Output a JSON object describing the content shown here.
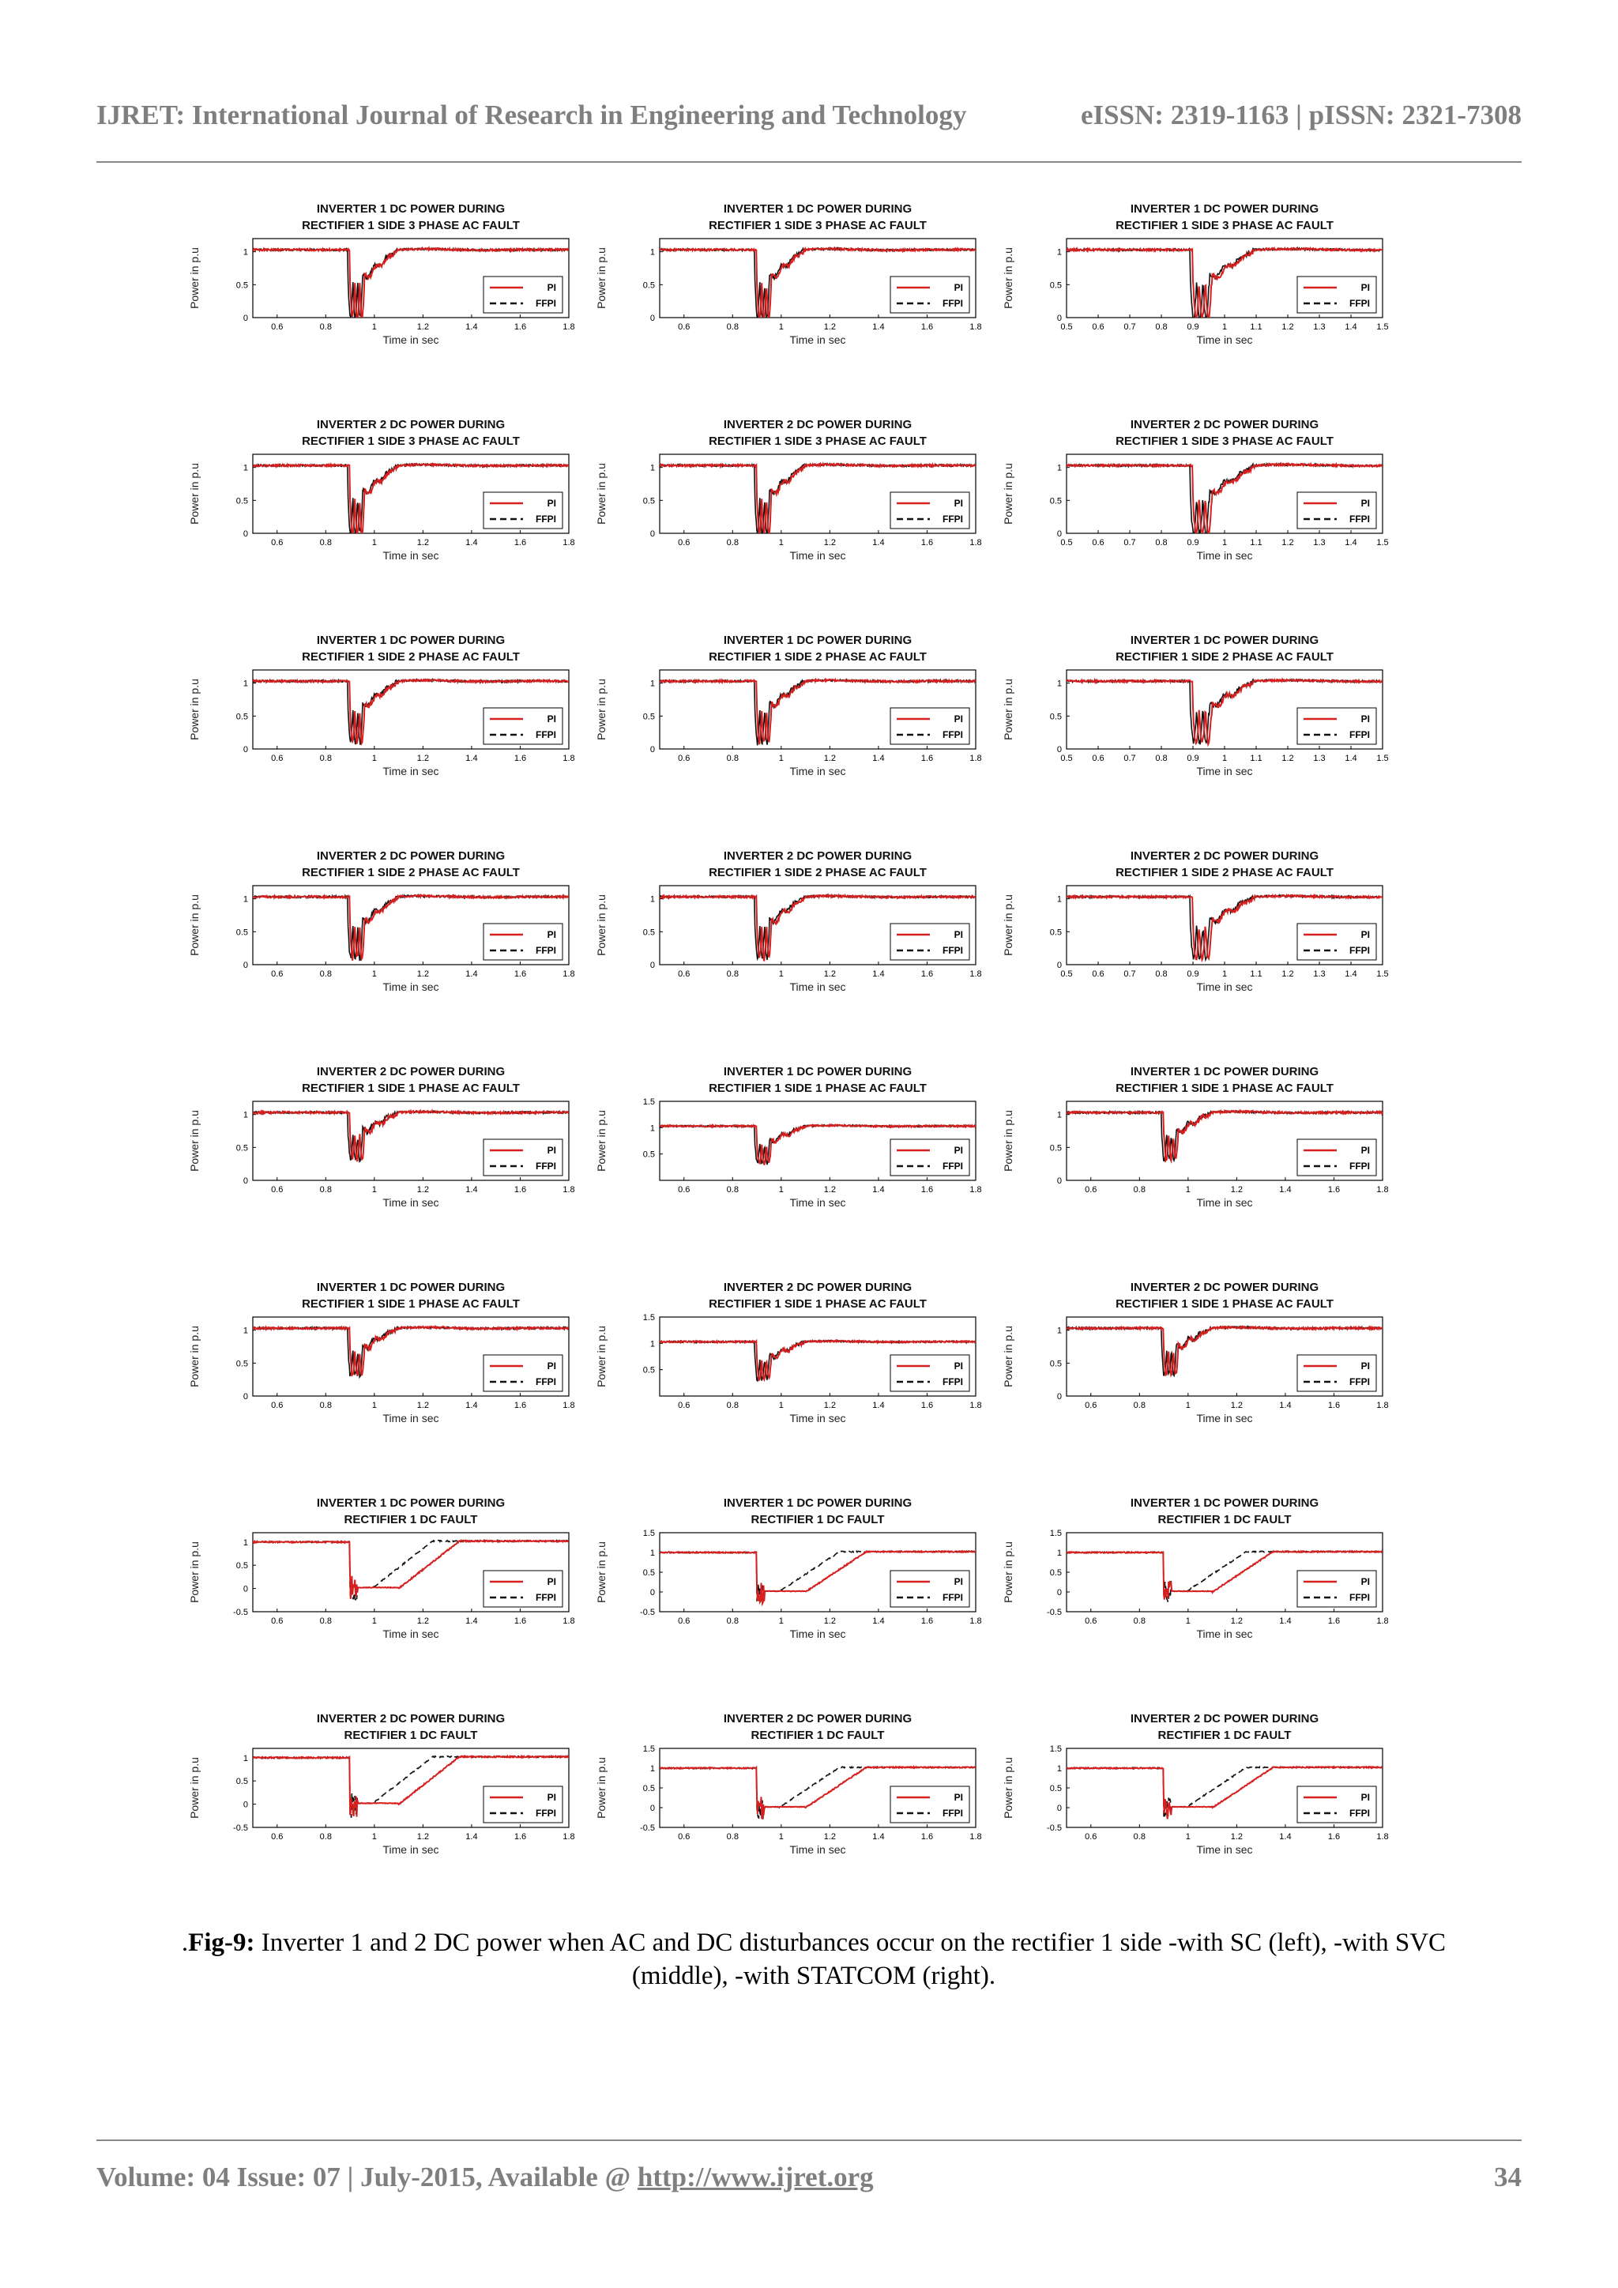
{
  "header": {
    "journal": "IJRET: International Journal of Research in Engineering and Technology",
    "issn": "eISSN: 2319-1163 | pISSN: 2321-7308"
  },
  "figure": {
    "legend": [
      "PI",
      "FFPI"
    ],
    "xlabel": "Time in sec",
    "ylabel": "Power in p.u",
    "colors": {
      "PI": "#d62020",
      "FFPI": "#111111"
    }
  },
  "chart_data": [
    {
      "type": "line",
      "title": "INVERTER 1 DC POWER DURING\nRECTIFIER 1 SIDE 3 PHASE AC FAULT",
      "fault": "ac3",
      "xlim": [
        0.5,
        1.8
      ],
      "xticks": [
        "0.6",
        "0.8",
        "1",
        "1.2",
        "1.4",
        "1.6",
        "1.8"
      ],
      "ylim": [
        0,
        1.2
      ],
      "yticks": [
        "0",
        "0.5",
        "1"
      ],
      "series": [
        {
          "name": "PI"
        },
        {
          "name": "FFPI"
        }
      ]
    },
    {
      "type": "line",
      "title": "INVERTER 1 DC POWER DURING\nRECTIFIER 1 SIDE 3 PHASE AC FAULT",
      "fault": "ac3",
      "xlim": [
        0.5,
        1.8
      ],
      "xticks": [
        "0.6",
        "0.8",
        "1",
        "1.2",
        "1.4",
        "1.6",
        "1.8"
      ],
      "ylim": [
        0,
        1.2
      ],
      "yticks": [
        "0",
        "0.5",
        "1"
      ],
      "series": [
        {
          "name": "PI"
        },
        {
          "name": "FFPI"
        }
      ]
    },
    {
      "type": "line",
      "title": "INVERTER 1 DC POWER DURING\nRECTIFIER 1 SIDE 3 PHASE AC FAULT",
      "fault": "ac3",
      "xlim": [
        0.5,
        1.5
      ],
      "xticks": [
        "0.5",
        "0.6",
        "0.7",
        "0.8",
        "0.9",
        "1",
        "1.1",
        "1.2",
        "1.3",
        "1.4",
        "1.5"
      ],
      "ylim": [
        0,
        1.2
      ],
      "yticks": [
        "0",
        "0.5",
        "1"
      ],
      "series": [
        {
          "name": "PI"
        },
        {
          "name": "FFPI"
        }
      ]
    },
    {
      "type": "line",
      "title": "INVERTER 2 DC POWER DURING\nRECTIFIER 1 SIDE 3 PHASE AC FAULT",
      "fault": "ac3",
      "xlim": [
        0.5,
        1.8
      ],
      "xticks": [
        "0.6",
        "0.8",
        "1",
        "1.2",
        "1.4",
        "1.6",
        "1.8"
      ],
      "ylim": [
        0,
        1.2
      ],
      "yticks": [
        "0",
        "0.5",
        "1"
      ],
      "series": [
        {
          "name": "PI"
        },
        {
          "name": "FFPI"
        }
      ]
    },
    {
      "type": "line",
      "title": "INVERTER 2 DC POWER DURING\nRECTIFIER 1 SIDE 3 PHASE AC FAULT",
      "fault": "ac3",
      "xlim": [
        0.5,
        1.8
      ],
      "xticks": [
        "0.6",
        "0.8",
        "1",
        "1.2",
        "1.4",
        "1.6",
        "1.8"
      ],
      "ylim": [
        0,
        1.2
      ],
      "yticks": [
        "0",
        "0.5",
        "1"
      ],
      "series": [
        {
          "name": "PI"
        },
        {
          "name": "FFPI"
        }
      ]
    },
    {
      "type": "line",
      "title": "INVERTER 2 DC POWER DURING\nRECTIFIER 1 SIDE 3 PHASE AC FAULT",
      "fault": "ac3",
      "xlim": [
        0.5,
        1.5
      ],
      "xticks": [
        "0.5",
        "0.6",
        "0.7",
        "0.8",
        "0.9",
        "1",
        "1.1",
        "1.2",
        "1.3",
        "1.4",
        "1.5"
      ],
      "ylim": [
        0,
        1.2
      ],
      "yticks": [
        "0",
        "0.5",
        "1"
      ],
      "series": [
        {
          "name": "PI"
        },
        {
          "name": "FFPI"
        }
      ]
    },
    {
      "type": "line",
      "title": "INVERTER 1 DC POWER DURING\nRECTIFIER 1 SIDE 2 PHASE AC FAULT",
      "fault": "ac2",
      "xlim": [
        0.5,
        1.8
      ],
      "xticks": [
        "0.6",
        "0.8",
        "1",
        "1.2",
        "1.4",
        "1.6",
        "1.8"
      ],
      "ylim": [
        0,
        1.2
      ],
      "yticks": [
        "0",
        "0.5",
        "1"
      ],
      "series": [
        {
          "name": "PI"
        },
        {
          "name": "FFPI"
        }
      ]
    },
    {
      "type": "line",
      "title": "INVERTER 1 DC POWER DURING\nRECTIFIER 1 SIDE 2 PHASE AC FAULT",
      "fault": "ac2",
      "xlim": [
        0.5,
        1.8
      ],
      "xticks": [
        "0.6",
        "0.8",
        "1",
        "1.2",
        "1.4",
        "1.6",
        "1.8"
      ],
      "ylim": [
        0,
        1.2
      ],
      "yticks": [
        "0",
        "0.5",
        "1"
      ],
      "series": [
        {
          "name": "PI"
        },
        {
          "name": "FFPI"
        }
      ]
    },
    {
      "type": "line",
      "title": "INVERTER 1 DC POWER DURING\nRECTIFIER 1 SIDE 2 PHASE AC FAULT",
      "fault": "ac2",
      "xlim": [
        0.5,
        1.5
      ],
      "xticks": [
        "0.5",
        "0.6",
        "0.7",
        "0.8",
        "0.9",
        "1",
        "1.1",
        "1.2",
        "1.3",
        "1.4",
        "1.5"
      ],
      "ylim": [
        0,
        1.2
      ],
      "yticks": [
        "0",
        "0.5",
        "1"
      ],
      "series": [
        {
          "name": "PI"
        },
        {
          "name": "FFPI"
        }
      ]
    },
    {
      "type": "line",
      "title": "INVERTER 2 DC POWER DURING\nRECTIFIER 1 SIDE 2 PHASE AC FAULT",
      "fault": "ac2",
      "xlim": [
        0.5,
        1.8
      ],
      "xticks": [
        "0.6",
        "0.8",
        "1",
        "1.2",
        "1.4",
        "1.6",
        "1.8"
      ],
      "ylim": [
        0,
        1.2
      ],
      "yticks": [
        "0",
        "0.5",
        "1"
      ],
      "series": [
        {
          "name": "PI"
        },
        {
          "name": "FFPI"
        }
      ]
    },
    {
      "type": "line",
      "title": "INVERTER 2 DC POWER DURING\nRECTIFIER 1 SIDE 2 PHASE AC FAULT",
      "fault": "ac2",
      "xlim": [
        0.5,
        1.8
      ],
      "xticks": [
        "0.6",
        "0.8",
        "1",
        "1.2",
        "1.4",
        "1.6",
        "1.8"
      ],
      "ylim": [
        0,
        1.2
      ],
      "yticks": [
        "0",
        "0.5",
        "1"
      ],
      "series": [
        {
          "name": "PI"
        },
        {
          "name": "FFPI"
        }
      ]
    },
    {
      "type": "line",
      "title": "INVERTER 2 DC POWER DURING\nRECTIFIER 1 SIDE 2 PHASE AC FAULT",
      "fault": "ac2",
      "xlim": [
        0.5,
        1.5
      ],
      "xticks": [
        "0.5",
        "0.6",
        "0.7",
        "0.8",
        "0.9",
        "1",
        "1.1",
        "1.2",
        "1.3",
        "1.4",
        "1.5"
      ],
      "ylim": [
        0,
        1.2
      ],
      "yticks": [
        "0",
        "0.5",
        "1"
      ],
      "series": [
        {
          "name": "PI"
        },
        {
          "name": "FFPI"
        }
      ]
    },
    {
      "type": "line",
      "title": "INVERTER 2 DC POWER DURING\nRECTIFIER 1 SIDE 1 PHASE AC FAULT",
      "fault": "ac1",
      "xlim": [
        0.5,
        1.8
      ],
      "xticks": [
        "0.6",
        "0.8",
        "1",
        "1.2",
        "1.4",
        "1.6",
        "1.8"
      ],
      "ylim": [
        0,
        1.2
      ],
      "yticks": [
        "0",
        "0.5",
        "1"
      ],
      "series": [
        {
          "name": "PI"
        },
        {
          "name": "FFPI"
        }
      ]
    },
    {
      "type": "line",
      "title": "INVERTER 1 DC POWER DURING\nRECTIFIER 1 SIDE 1 PHASE AC FAULT",
      "fault": "ac1",
      "xlim": [
        0.5,
        1.8
      ],
      "xticks": [
        "0.6",
        "0.8",
        "1",
        "1.2",
        "1.4",
        "1.6",
        "1.8"
      ],
      "ylim": [
        0,
        1.5
      ],
      "yticks": [
        "0.5",
        "1",
        "1.5"
      ],
      "series": [
        {
          "name": "PI"
        },
        {
          "name": "FFPI"
        }
      ]
    },
    {
      "type": "line",
      "title": "INVERTER 1 DC POWER DURING\nRECTIFIER 1 SIDE 1 PHASE AC FAULT",
      "fault": "ac1",
      "xlim": [
        0.5,
        1.8
      ],
      "xticks": [
        "0.6",
        "0.8",
        "1",
        "1.2",
        "1.4",
        "1.6",
        "1.8"
      ],
      "ylim": [
        0,
        1.2
      ],
      "yticks": [
        "0",
        "0.5",
        "1"
      ],
      "series": [
        {
          "name": "PI"
        },
        {
          "name": "FFPI"
        }
      ]
    },
    {
      "type": "line",
      "title": "INVERTER 1 DC POWER DURING\nRECTIFIER 1 SIDE 1 PHASE AC FAULT",
      "fault": "ac1",
      "xlim": [
        0.5,
        1.8
      ],
      "xticks": [
        "0.6",
        "0.8",
        "1",
        "1.2",
        "1.4",
        "1.6",
        "1.8"
      ],
      "ylim": [
        0,
        1.2
      ],
      "yticks": [
        "0",
        "0.5",
        "1"
      ],
      "series": [
        {
          "name": "PI"
        },
        {
          "name": "FFPI"
        }
      ]
    },
    {
      "type": "line",
      "title": "INVERTER 2 DC POWER DURING\nRECTIFIER 1 SIDE 1 PHASE AC FAULT",
      "fault": "ac1",
      "xlim": [
        0.5,
        1.8
      ],
      "xticks": [
        "0.6",
        "0.8",
        "1",
        "1.2",
        "1.4",
        "1.6",
        "1.8"
      ],
      "ylim": [
        0,
        1.5
      ],
      "yticks": [
        "0.5",
        "1",
        "1.5"
      ],
      "series": [
        {
          "name": "PI"
        },
        {
          "name": "FFPI"
        }
      ]
    },
    {
      "type": "line",
      "title": "INVERTER 2 DC POWER DURING\nRECTIFIER 1 SIDE 1 PHASE AC FAULT",
      "fault": "ac1",
      "xlim": [
        0.5,
        1.8
      ],
      "xticks": [
        "0.6",
        "0.8",
        "1",
        "1.2",
        "1.4",
        "1.6",
        "1.8"
      ],
      "ylim": [
        0,
        1.2
      ],
      "yticks": [
        "0",
        "0.5",
        "1"
      ],
      "series": [
        {
          "name": "PI"
        },
        {
          "name": "FFPI"
        }
      ]
    },
    {
      "type": "line",
      "title": "INVERTER 1 DC POWER DURING\nRECTIFIER 1 DC FAULT",
      "fault": "dc",
      "xlim": [
        0.5,
        1.8
      ],
      "xticks": [
        "0.6",
        "0.8",
        "1",
        "1.2",
        "1.4",
        "1.6",
        "1.8"
      ],
      "ylim": [
        -0.5,
        1.2
      ],
      "yticks": [
        "-0.5",
        "0",
        "0.5",
        "1"
      ],
      "series": [
        {
          "name": "PI"
        },
        {
          "name": "FFPI"
        }
      ]
    },
    {
      "type": "line",
      "title": "INVERTER 1 DC POWER DURING\nRECTIFIER 1 DC FAULT",
      "fault": "dc",
      "xlim": [
        0.5,
        1.8
      ],
      "xticks": [
        "0.6",
        "0.8",
        "1",
        "1.2",
        "1.4",
        "1.6",
        "1.8"
      ],
      "ylim": [
        -0.5,
        1.5
      ],
      "yticks": [
        "-0.5",
        "0",
        "0.5",
        "1",
        "1.5"
      ],
      "series": [
        {
          "name": "PI"
        },
        {
          "name": "FFPI"
        }
      ]
    },
    {
      "type": "line",
      "title": "INVERTER 1 DC POWER DURING\nRECTIFIER 1 DC FAULT",
      "fault": "dc",
      "xlim": [
        0.5,
        1.8
      ],
      "xticks": [
        "0.6",
        "0.8",
        "1",
        "1.2",
        "1.4",
        "1.6",
        "1.8"
      ],
      "ylim": [
        -0.5,
        1.5
      ],
      "yticks": [
        "-0.5",
        "0",
        "0.5",
        "1",
        "1.5"
      ],
      "series": [
        {
          "name": "PI"
        },
        {
          "name": "FFPI"
        }
      ]
    },
    {
      "type": "line",
      "title": "INVERTER 2 DC POWER DURING\nRECTIFIER 1 DC FAULT",
      "fault": "dc",
      "xlim": [
        0.5,
        1.8
      ],
      "xticks": [
        "0.6",
        "0.8",
        "1",
        "1.2",
        "1.4",
        "1.6",
        "1.8"
      ],
      "ylim": [
        -0.5,
        1.2
      ],
      "yticks": [
        "-0.5",
        "0",
        "0.5",
        "1"
      ],
      "series": [
        {
          "name": "PI"
        },
        {
          "name": "FFPI"
        }
      ]
    },
    {
      "type": "line",
      "title": "INVERTER 2 DC POWER DURING\nRECTIFIER 1 DC FAULT",
      "fault": "dc",
      "xlim": [
        0.5,
        1.8
      ],
      "xticks": [
        "0.6",
        "0.8",
        "1",
        "1.2",
        "1.4",
        "1.6",
        "1.8"
      ],
      "ylim": [
        -0.5,
        1.5
      ],
      "yticks": [
        "-0.5",
        "0",
        "0.5",
        "1",
        "1.5"
      ],
      "series": [
        {
          "name": "PI"
        },
        {
          "name": "FFPI"
        }
      ]
    },
    {
      "type": "line",
      "title": "INVERTER 2 DC POWER DURING\nRECTIFIER 1 DC FAULT",
      "fault": "dc",
      "xlim": [
        0.5,
        1.8
      ],
      "xticks": [
        "0.6",
        "0.8",
        "1",
        "1.2",
        "1.4",
        "1.6",
        "1.8"
      ],
      "ylim": [
        -0.5,
        1.5
      ],
      "yticks": [
        "-0.5",
        "0",
        "0.5",
        "1",
        "1.5"
      ],
      "series": [
        {
          "name": "PI"
        },
        {
          "name": "FFPI"
        }
      ]
    }
  ],
  "caption": {
    "prefix": ".",
    "label": "Fig-9:",
    "text": " Inverter 1 and 2 DC power when AC and DC disturbances occur on the rectifier 1 side -with SC (left), -with SVC (middle), -with STATCOM (right)."
  },
  "footer": {
    "left_text": "Volume: 04 Issue: 07 | July-2015, Available @ ",
    "link_text": "http://www.ijret.org",
    "page": "34"
  }
}
